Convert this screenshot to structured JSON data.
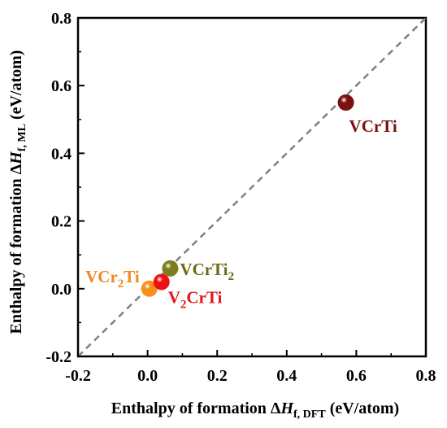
{
  "chart_data": {
    "type": "scatter",
    "title": "",
    "xlabel": {
      "prefix": "Enthalpy of formation Δ",
      "var": "H",
      "sub": "f, DFT",
      "suffix": " (eV/atom)"
    },
    "ylabel": {
      "prefix": "Enthalpy of formation Δ",
      "var": "H",
      "sub": "f, ML",
      "suffix": "  (eV/atom)"
    },
    "xlim": [
      -0.2,
      0.8
    ],
    "ylim": [
      -0.2,
      0.8
    ],
    "x_ticks": [
      "-0.2",
      "0.0",
      "0.2",
      "0.4",
      "0.6",
      "0.8"
    ],
    "y_ticks": [
      "-0.2",
      "0.0",
      "0.2",
      "0.4",
      "0.6",
      "0.8"
    ],
    "x_tick_values": [
      -0.2,
      0.0,
      0.2,
      0.4,
      0.6,
      0.8
    ],
    "y_tick_values": [
      -0.2,
      0.0,
      0.2,
      0.4,
      0.6,
      0.8
    ],
    "grid": false,
    "reference_line": {
      "style": "dashed",
      "color": "#808080",
      "from": [
        -0.2,
        -0.2
      ],
      "to": [
        0.8,
        0.8
      ]
    },
    "points": [
      {
        "label_parts": [
          {
            "t": "VCrTi"
          }
        ],
        "x": 0.57,
        "y": 0.55,
        "color": "#7a1010",
        "label_color": "#7a1010",
        "label_pos": "below-right"
      },
      {
        "label_parts": [
          {
            "t": "VCrTi"
          },
          {
            "t": "2",
            "sub": true
          }
        ],
        "x": 0.065,
        "y": 0.06,
        "color": "#7d7d1e",
        "label_color": "#6b6b14",
        "label_pos": "right"
      },
      {
        "label_parts": [
          {
            "t": "VCr"
          },
          {
            "t": "2",
            "sub": true
          },
          {
            "t": "Ti"
          }
        ],
        "x": 0.005,
        "y": 0.0,
        "color": "#f5901e",
        "label_color": "#f08a1c",
        "label_pos": "upper-left"
      },
      {
        "label_parts": [
          {
            "t": "V"
          },
          {
            "t": "2",
            "sub": true
          },
          {
            "t": "CrTi"
          }
        ],
        "x": 0.04,
        "y": 0.02,
        "color": "#ee1111",
        "label_color": "#e01818",
        "label_pos": "below-right"
      }
    ]
  }
}
